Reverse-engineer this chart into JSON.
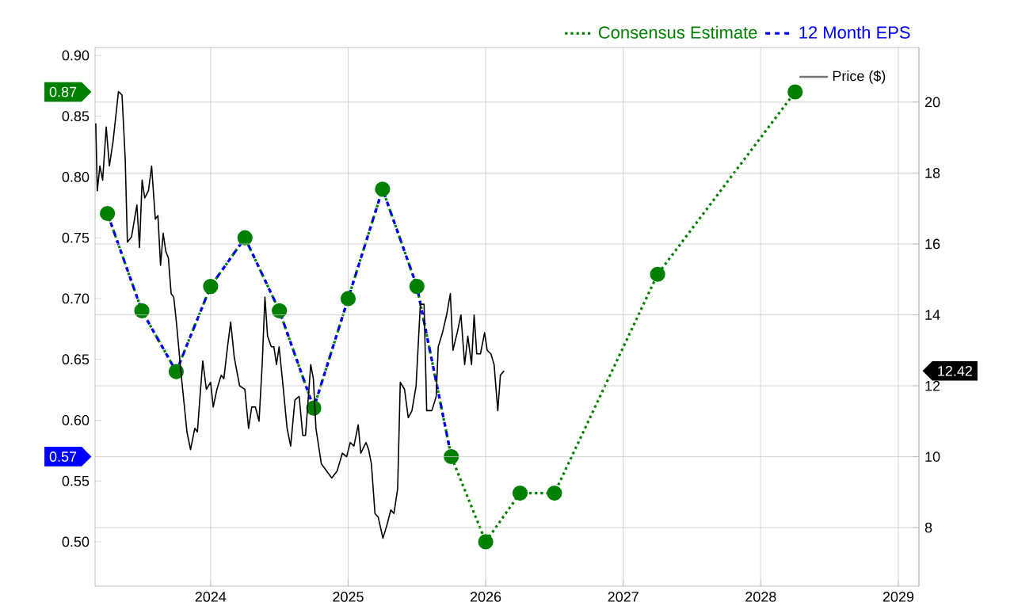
{
  "chart_data": {
    "type": "line",
    "xlim": [
      2023.16,
      2029.15
    ],
    "xticks": [
      2024,
      2025,
      2026,
      2027,
      2028,
      2029
    ],
    "ylim": [
      0.4635,
      0.9065
    ],
    "yticks": [
      {
        "value": 0.5,
        "label": "0.50"
      },
      {
        "value": 0.55,
        "label": "0.55"
      },
      {
        "value": 0.6,
        "label": "0.60"
      },
      {
        "value": 0.65,
        "label": "0.65"
      },
      {
        "value": 0.7,
        "label": "0.70"
      },
      {
        "value": 0.75,
        "label": "0.75"
      },
      {
        "value": 0.8,
        "label": "0.80"
      },
      {
        "value": 0.85,
        "label": "0.85"
      },
      {
        "value": 0.9,
        "label": "0.90"
      }
    ],
    "y2lim": [
      6.35,
      21.54
    ],
    "y2ticks": [
      8,
      10,
      12,
      14,
      16,
      18,
      20
    ],
    "grid": true,
    "legend": "top right",
    "series": [
      {
        "name": "Consensus Estimate",
        "color": "#008000",
        "line_style": "dotted",
        "marker": "circle",
        "x": [
          2023.25,
          2023.5,
          2023.75,
          2024,
          2024.25,
          2024.5,
          2024.75,
          2025,
          2025.25,
          2025.5,
          2025.75,
          2026,
          2026.25,
          2026.5,
          2027.25,
          2028.25
        ],
        "values": [
          0.77,
          0.69,
          0.64,
          0.71,
          0.75,
          0.69,
          0.61,
          0.7,
          0.79,
          0.71,
          0.57,
          0.5,
          0.54,
          0.54,
          0.72,
          0.87
        ]
      },
      {
        "name": "12 Month EPS",
        "color": "#0000ff",
        "line_style": "dashed",
        "marker": "none",
        "x": [
          2023.25,
          2023.5,
          2023.75,
          2024,
          2024.25,
          2024.5,
          2024.75,
          2025,
          2025.25,
          2025.5,
          2025.75
        ],
        "values": [
          0.77,
          0.69,
          0.64,
          0.71,
          0.75,
          0.69,
          0.61,
          0.7,
          0.79,
          0.71,
          0.57
        ]
      },
      {
        "name": "Price ($)",
        "color": "#000000",
        "line_style": "solid",
        "marker": "none",
        "axis": "y2",
        "x": [
          2023.165,
          2023.176,
          2023.195,
          2023.215,
          2023.241,
          2023.264,
          2023.291,
          2023.33,
          2023.356,
          2023.379,
          2023.395,
          2023.425,
          2023.464,
          2023.483,
          2023.502,
          2023.521,
          2023.548,
          2023.571,
          2023.598,
          2023.617,
          2023.636,
          2023.655,
          2023.674,
          2023.693,
          2023.713,
          2023.732,
          2023.751,
          2023.789,
          2023.828,
          2023.854,
          2023.885,
          2023.904,
          2023.923,
          2023.943,
          2023.969,
          2024.0,
          2024.019,
          2024.046,
          2024.077,
          2024.096,
          2024.123,
          2024.146,
          2024.172,
          2024.211,
          2024.249,
          2024.276,
          2024.299,
          2024.326,
          2024.352,
          2024.375,
          2024.395,
          2024.414,
          2024.441,
          2024.46,
          2024.479,
          2024.498,
          2024.529,
          2024.556,
          2024.582,
          2024.613,
          2024.644,
          2024.67,
          2024.69,
          2024.709,
          2024.728,
          2024.747,
          2024.766,
          2024.805,
          2024.843,
          2024.881,
          2024.92,
          2024.958,
          2024.989,
          2025.015,
          2025.042,
          2025.073,
          2025.092,
          2025.13,
          2025.149,
          2025.169,
          2025.195,
          2025.218,
          2025.253,
          2025.284,
          2025.31,
          2025.333,
          2025.36,
          2025.379,
          2025.41,
          2025.437,
          2025.464,
          2025.494,
          2025.525,
          2025.552,
          2025.571,
          2025.609,
          2025.64,
          2025.655,
          2025.686,
          2025.716,
          2025.743,
          2025.762,
          2025.793,
          2025.82,
          2025.847,
          2025.87,
          2025.897,
          2025.916,
          2025.935,
          2025.962,
          2025.992,
          2026.011,
          2026.038,
          2026.061,
          2026.088,
          2026.107,
          2026.134
        ],
        "values": [
          19.4,
          17.5,
          18.2,
          17.8,
          19.3,
          18.2,
          18.9,
          20.3,
          20.2,
          18.4,
          16.05,
          16.2,
          17.1,
          15.9,
          17.8,
          17.3,
          17.5,
          18.2,
          16.7,
          16.8,
          15.4,
          16.3,
          15.8,
          15.6,
          14.6,
          14.5,
          13.8,
          12.2,
          10.7,
          10.2,
          10.8,
          10.7,
          11.7,
          12.7,
          11.9,
          12.1,
          11.4,
          11.9,
          12.3,
          12.2,
          13.1,
          13.8,
          12.8,
          12.0,
          11.9,
          10.8,
          11.4,
          11.4,
          11.0,
          12.6,
          14.5,
          13.4,
          13.1,
          13.1,
          12.6,
          13.1,
          11.9,
          10.8,
          10.3,
          11.6,
          11.7,
          10.6,
          10.6,
          11.6,
          12.6,
          12.2,
          10.8,
          9.8,
          9.6,
          9.4,
          9.6,
          10.1,
          10.0,
          10.4,
          10.3,
          10.9,
          10.1,
          10.4,
          10.2,
          9.8,
          8.4,
          8.3,
          7.7,
          8.1,
          8.5,
          8.4,
          9.1,
          12.1,
          11.9,
          11.1,
          11.3,
          12.0,
          14.3,
          14.3,
          11.3,
          11.3,
          11.7,
          13.1,
          13.5,
          14.0,
          14.6,
          13.0,
          13.5,
          14.0,
          12.6,
          13.4,
          12.6,
          14.0,
          12.9,
          12.9,
          13.5,
          13.0,
          12.9,
          12.6,
          11.3,
          12.3,
          12.42
        ]
      }
    ],
    "annotations": [
      "0.87",
      "0.57",
      "12.42"
    ]
  }
}
